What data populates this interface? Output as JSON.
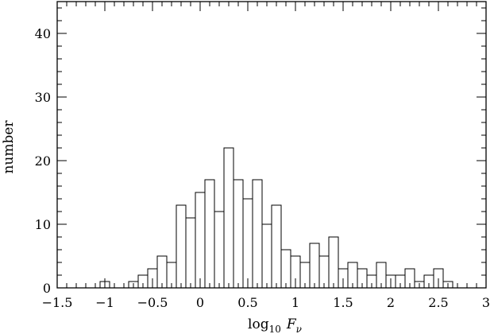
{
  "chart_data": {
    "type": "bar",
    "subtype": "histogram",
    "xlabel": "log10 Fν",
    "xlabel_parts": {
      "base": "log",
      "sub": "10",
      "var": "F",
      "var_sub": "ν"
    },
    "ylabel": "number",
    "xlim": [
      -1.5,
      3.0
    ],
    "ylim": [
      0,
      45
    ],
    "bin_width": 0.1,
    "x_ticks": [
      -1.5,
      -1,
      -0.5,
      0,
      0.5,
      1,
      1.5,
      2,
      2.5,
      3
    ],
    "x_tick_labels": [
      "−1.5",
      "−1",
      "−0.5",
      "0",
      "0.5",
      "1",
      "1.5",
      "2",
      "2.5",
      "3"
    ],
    "y_ticks": [
      0,
      10,
      20,
      30,
      40
    ],
    "y_tick_labels": [
      "0",
      "10",
      "20",
      "30",
      "40"
    ],
    "grid": false,
    "bins": [
      {
        "x0": -1.05,
        "x1": -0.95,
        "count": 1
      },
      {
        "x0": -0.75,
        "x1": -0.65,
        "count": 1
      },
      {
        "x0": -0.65,
        "x1": -0.55,
        "count": 2
      },
      {
        "x0": -0.55,
        "x1": -0.45,
        "count": 3
      },
      {
        "x0": -0.45,
        "x1": -0.35,
        "count": 5
      },
      {
        "x0": -0.35,
        "x1": -0.25,
        "count": 4
      },
      {
        "x0": -0.25,
        "x1": -0.15,
        "count": 13
      },
      {
        "x0": -0.15,
        "x1": -0.05,
        "count": 11
      },
      {
        "x0": -0.05,
        "x1": 0.05,
        "count": 15
      },
      {
        "x0": 0.05,
        "x1": 0.15,
        "count": 17
      },
      {
        "x0": 0.15,
        "x1": 0.25,
        "count": 12
      },
      {
        "x0": 0.25,
        "x1": 0.35,
        "count": 22
      },
      {
        "x0": 0.35,
        "x1": 0.45,
        "count": 17
      },
      {
        "x0": 0.45,
        "x1": 0.55,
        "count": 14
      },
      {
        "x0": 0.55,
        "x1": 0.65,
        "count": 17
      },
      {
        "x0": 0.65,
        "x1": 0.75,
        "count": 10
      },
      {
        "x0": 0.75,
        "x1": 0.85,
        "count": 13
      },
      {
        "x0": 0.85,
        "x1": 0.95,
        "count": 6
      },
      {
        "x0": 0.95,
        "x1": 1.05,
        "count": 5
      },
      {
        "x0": 1.05,
        "x1": 1.15,
        "count": 4
      },
      {
        "x0": 1.15,
        "x1": 1.25,
        "count": 7
      },
      {
        "x0": 1.25,
        "x1": 1.35,
        "count": 5
      },
      {
        "x0": 1.35,
        "x1": 1.45,
        "count": 8
      },
      {
        "x0": 1.45,
        "x1": 1.55,
        "count": 3
      },
      {
        "x0": 1.55,
        "x1": 1.65,
        "count": 4
      },
      {
        "x0": 1.65,
        "x1": 1.75,
        "count": 3
      },
      {
        "x0": 1.75,
        "x1": 1.85,
        "count": 2
      },
      {
        "x0": 1.85,
        "x1": 1.95,
        "count": 4
      },
      {
        "x0": 1.95,
        "x1": 2.05,
        "count": 2
      },
      {
        "x0": 2.05,
        "x1": 2.15,
        "count": 2
      },
      {
        "x0": 2.15,
        "x1": 2.25,
        "count": 3
      },
      {
        "x0": 2.25,
        "x1": 2.35,
        "count": 1
      },
      {
        "x0": 2.35,
        "x1": 2.45,
        "count": 2
      },
      {
        "x0": 2.45,
        "x1": 2.55,
        "count": 3
      },
      {
        "x0": 2.55,
        "x1": 2.65,
        "count": 1
      }
    ]
  }
}
